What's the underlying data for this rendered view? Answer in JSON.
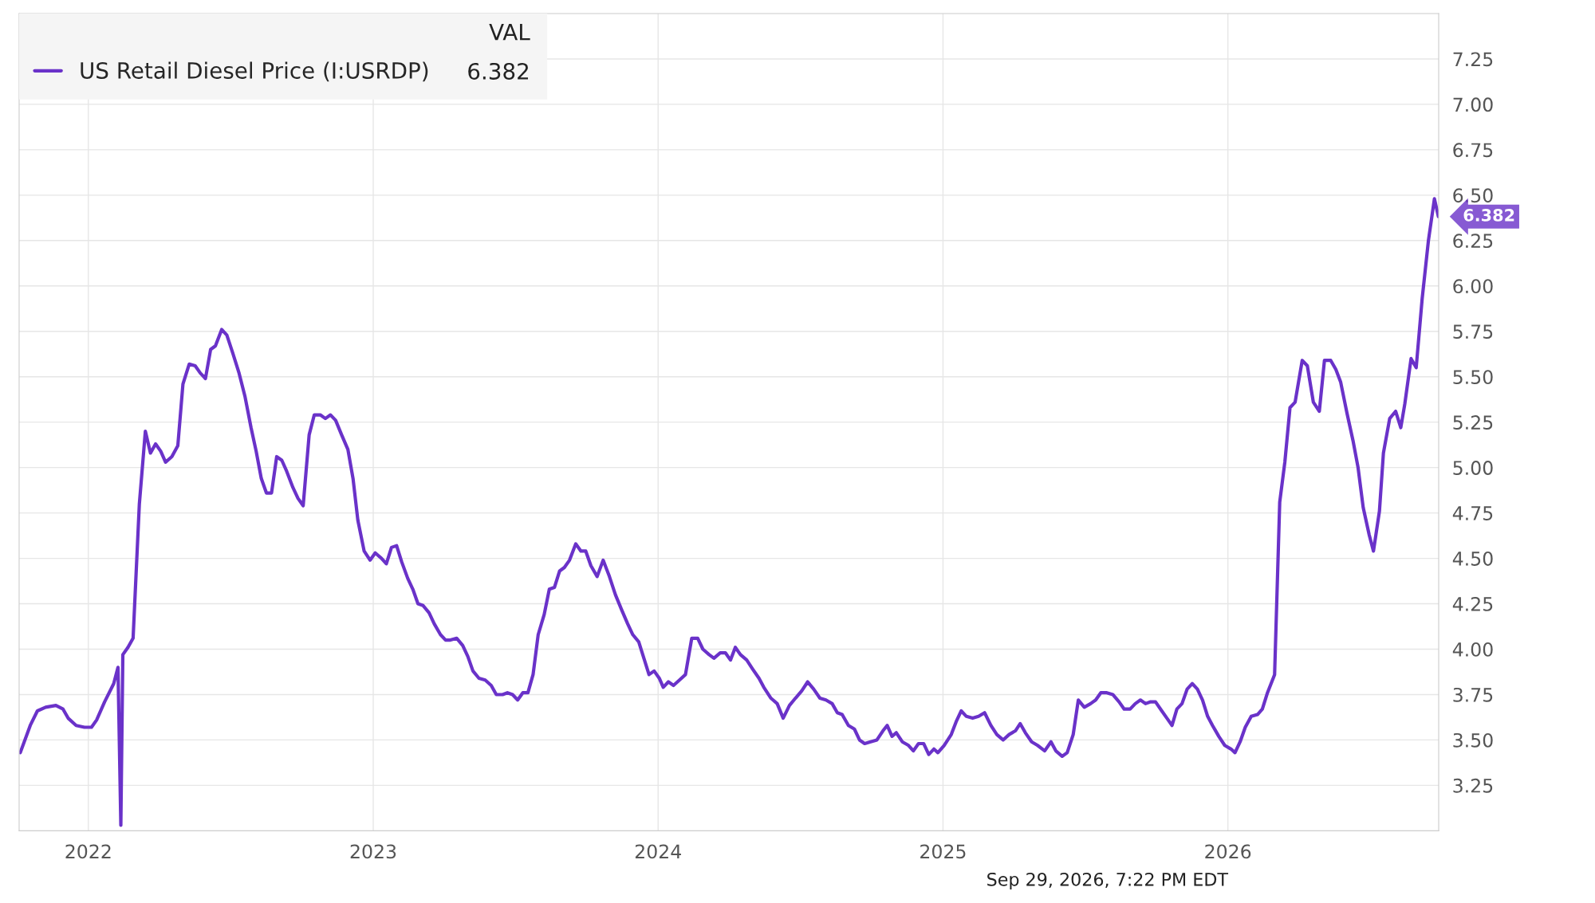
{
  "chart_data": {
    "type": "line",
    "x": [
      2021.761,
      2021.796,
      2021.821,
      2021.85,
      2021.886,
      2021.911,
      2021.929,
      2021.957,
      2021.986,
      2022.011,
      2022.029,
      2022.057,
      2022.089,
      2022.104,
      2022.114,
      2022.121,
      2022.139,
      2022.157,
      2022.179,
      2022.2,
      2022.218,
      2022.236,
      2022.254,
      2022.271,
      2022.293,
      2022.314,
      2022.332,
      2022.354,
      2022.375,
      2022.393,
      2022.411,
      2022.429,
      2022.446,
      2022.468,
      2022.486,
      2022.507,
      2022.529,
      2022.55,
      2022.571,
      2022.589,
      2022.607,
      2022.625,
      2022.643,
      2022.661,
      2022.679,
      2022.696,
      2022.718,
      2022.736,
      2022.754,
      2022.775,
      2022.793,
      2022.814,
      2022.832,
      2022.85,
      2022.868,
      2022.889,
      2022.911,
      2022.929,
      2022.946,
      2022.968,
      2022.989,
      2023.007,
      2023.029,
      2023.046,
      2023.064,
      2023.082,
      2023.1,
      2023.121,
      2023.139,
      2023.157,
      2023.175,
      2023.196,
      2023.214,
      2023.236,
      2023.254,
      2023.271,
      2023.293,
      2023.314,
      2023.332,
      2023.35,
      2023.371,
      2023.393,
      2023.414,
      2023.432,
      2023.454,
      2023.471,
      2023.489,
      2023.507,
      2023.525,
      2023.543,
      2023.561,
      2023.579,
      2023.6,
      2023.618,
      2023.636,
      2023.654,
      2023.671,
      2023.689,
      2023.711,
      2023.729,
      2023.746,
      2023.764,
      2023.786,
      2023.807,
      2023.829,
      2023.85,
      2023.871,
      2023.893,
      2023.911,
      2023.932,
      2023.95,
      2023.968,
      2023.986,
      2024.004,
      2024.018,
      2024.036,
      2024.054,
      2024.075,
      2024.096,
      2024.118,
      2024.139,
      2024.157,
      2024.179,
      2024.196,
      2024.218,
      2024.236,
      2024.254,
      2024.271,
      2024.289,
      2024.311,
      2024.332,
      2024.354,
      2024.371,
      2024.396,
      2024.418,
      2024.439,
      2024.461,
      2024.482,
      2024.504,
      2024.525,
      2024.546,
      2024.568,
      2024.589,
      2024.611,
      2024.629,
      2024.646,
      2024.668,
      2024.689,
      2024.707,
      2024.725,
      2024.746,
      2024.768,
      2024.789,
      2024.804,
      2024.821,
      2024.836,
      2024.857,
      2024.879,
      2024.896,
      2024.914,
      2024.932,
      2024.95,
      2024.968,
      2024.982,
      2025.004,
      2025.029,
      2025.046,
      2025.064,
      2025.082,
      2025.104,
      2025.125,
      2025.146,
      2025.168,
      2025.189,
      2025.211,
      2025.232,
      2025.254,
      2025.271,
      2025.289,
      2025.311,
      2025.332,
      2025.357,
      2025.379,
      2025.396,
      2025.418,
      2025.436,
      2025.457,
      2025.475,
      2025.496,
      2025.518,
      2025.536,
      2025.554,
      2025.575,
      2025.596,
      2025.618,
      2025.636,
      2025.657,
      2025.675,
      2025.693,
      2025.711,
      2025.729,
      2025.746,
      2025.768,
      2025.786,
      2025.804,
      2025.821,
      2025.839,
      2025.857,
      2025.875,
      2025.893,
      2025.911,
      2025.929,
      2025.946,
      2025.968,
      2025.989,
      2026.011,
      2026.025,
      2026.043,
      2026.061,
      2026.082,
      2026.104,
      2026.121,
      2026.139,
      2026.164,
      2026.182,
      2026.2,
      2026.218,
      2026.236,
      2026.261,
      2026.279,
      2026.3,
      2026.321,
      2026.339,
      2026.361,
      2026.379,
      2026.396,
      2026.418,
      2026.439,
      2026.457,
      2026.475,
      2026.496,
      2026.511,
      2026.532,
      2026.546,
      2026.568,
      2026.589,
      2026.607,
      2026.621,
      2026.643,
      2026.661,
      2026.682,
      2026.704,
      2026.725,
      2026.739
    ],
    "series": [
      {
        "name": "US Retail Diesel Price (I:USRDP)",
        "color": "#6a32c9",
        "values": [
          3.43,
          3.58,
          3.66,
          3.68,
          3.69,
          3.67,
          3.62,
          3.58,
          3.57,
          3.57,
          3.61,
          3.71,
          3.81,
          3.9,
          3.03,
          3.97,
          4.01,
          4.06,
          4.8,
          5.2,
          5.08,
          5.13,
          5.09,
          5.03,
          5.06,
          5.12,
          5.46,
          5.57,
          5.56,
          5.52,
          5.49,
          5.65,
          5.67,
          5.76,
          5.73,
          5.63,
          5.52,
          5.39,
          5.22,
          5.09,
          4.94,
          4.86,
          4.86,
          5.06,
          5.04,
          4.98,
          4.89,
          4.83,
          4.79,
          5.18,
          5.29,
          5.29,
          5.27,
          5.29,
          5.26,
          5.18,
          5.1,
          4.94,
          4.71,
          4.54,
          4.49,
          4.53,
          4.5,
          4.47,
          4.56,
          4.57,
          4.48,
          4.39,
          4.33,
          4.25,
          4.24,
          4.2,
          4.14,
          4.08,
          4.05,
          4.05,
          4.06,
          4.02,
          3.96,
          3.88,
          3.84,
          3.83,
          3.8,
          3.75,
          3.75,
          3.76,
          3.75,
          3.72,
          3.76,
          3.76,
          3.86,
          4.08,
          4.19,
          4.33,
          4.34,
          4.43,
          4.45,
          4.49,
          4.58,
          4.54,
          4.54,
          4.46,
          4.4,
          4.49,
          4.4,
          4.3,
          4.22,
          4.14,
          4.08,
          4.04,
          3.95,
          3.86,
          3.88,
          3.84,
          3.79,
          3.82,
          3.8,
          3.83,
          3.86,
          4.06,
          4.06,
          4.0,
          3.97,
          3.95,
          3.98,
          3.98,
          3.94,
          4.01,
          3.97,
          3.94,
          3.89,
          3.84,
          3.79,
          3.73,
          3.7,
          3.62,
          3.69,
          3.73,
          3.77,
          3.82,
          3.78,
          3.73,
          3.72,
          3.7,
          3.65,
          3.64,
          3.58,
          3.56,
          3.5,
          3.48,
          3.49,
          3.5,
          3.55,
          3.58,
          3.52,
          3.54,
          3.49,
          3.47,
          3.44,
          3.48,
          3.48,
          3.42,
          3.45,
          3.43,
          3.47,
          3.53,
          3.6,
          3.66,
          3.63,
          3.62,
          3.63,
          3.65,
          3.58,
          3.53,
          3.5,
          3.53,
          3.55,
          3.59,
          3.54,
          3.49,
          3.47,
          3.44,
          3.49,
          3.44,
          3.41,
          3.43,
          3.53,
          3.72,
          3.68,
          3.7,
          3.72,
          3.76,
          3.76,
          3.75,
          3.71,
          3.67,
          3.67,
          3.7,
          3.72,
          3.7,
          3.71,
          3.71,
          3.66,
          3.62,
          3.58,
          3.67,
          3.7,
          3.78,
          3.81,
          3.78,
          3.72,
          3.63,
          3.58,
          3.52,
          3.47,
          3.45,
          3.43,
          3.49,
          3.57,
          3.63,
          3.64,
          3.67,
          3.76,
          3.86,
          4.81,
          5.03,
          5.33,
          5.36,
          5.59,
          5.56,
          5.36,
          5.31,
          5.59,
          5.59,
          5.54,
          5.47,
          5.3,
          5.15,
          5.0,
          4.78,
          4.63,
          4.54,
          4.76,
          5.08,
          5.27,
          5.31,
          5.22,
          5.35,
          5.6,
          5.55,
          5.93,
          6.25,
          6.48,
          6.382
        ]
      }
    ],
    "legend_title": "VAL",
    "legend": "top left",
    "xlim": [
      2021.757,
      2026.74
    ],
    "xticks": [
      2022,
      2023,
      2024,
      2025,
      2026
    ],
    "ylim": [
      3.0,
      7.5
    ],
    "yticks": [
      {
        "value": 3.25,
        "label": "3.25"
      },
      {
        "value": 3.5,
        "label": "3.50"
      },
      {
        "value": 3.75,
        "label": "3.75"
      },
      {
        "value": 4.0,
        "label": "4.00"
      },
      {
        "value": 4.25,
        "label": "4.25"
      },
      {
        "value": 4.5,
        "label": "4.50"
      },
      {
        "value": 4.75,
        "label": "4.75"
      },
      {
        "value": 5.0,
        "label": "5.00"
      },
      {
        "value": 5.25,
        "label": "5.25"
      },
      {
        "value": 5.5,
        "label": "5.50"
      },
      {
        "value": 5.75,
        "label": "5.75"
      },
      {
        "value": 6.0,
        "label": "6.00"
      },
      {
        "value": 6.25,
        "label": "6.25"
      },
      {
        "value": 6.5,
        "label": "6.50"
      },
      {
        "value": 6.75,
        "label": "6.75"
      },
      {
        "value": 7.0,
        "label": "7.00"
      },
      {
        "value": 7.25,
        "label": "7.25"
      }
    ],
    "grid": true,
    "annotations": [
      {
        "text": "6.382",
        "x": 2026.739,
        "y": 6.382
      },
      "Sep 29, 2026, 7:22 PM EDT"
    ]
  }
}
